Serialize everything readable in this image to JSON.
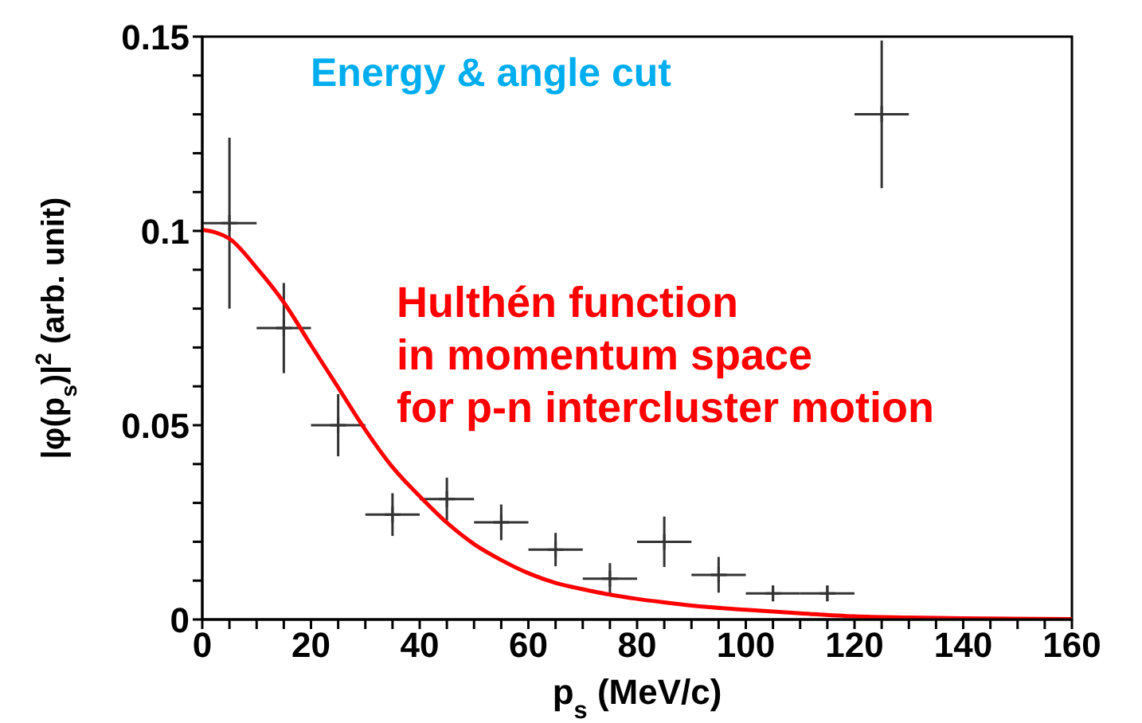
{
  "chart_data": {
    "type": "scatter",
    "xlabel": "p$_{s}$ (MeV/c)",
    "ylabel": "|φ(p$_{s}$)|$^{2}$ (arb. unit)",
    "annotations": [
      "Energy & angle cut"
    ],
    "xlim": [
      0,
      160
    ],
    "ylim": [
      0,
      0.15
    ],
    "xticks": [
      0,
      {
        "value": 5,
        "label": null
      },
      {
        "value": 10,
        "label": null
      },
      {
        "value": 15,
        "label": null
      },
      20,
      {
        "value": 25,
        "label": null
      },
      {
        "value": 30,
        "label": null
      },
      {
        "value": 35,
        "label": null
      },
      40,
      {
        "value": 45,
        "label": null
      },
      {
        "value": 50,
        "label": null
      },
      {
        "value": 55,
        "label": null
      },
      60,
      {
        "value": 65,
        "label": null
      },
      {
        "value": 70,
        "label": null
      },
      {
        "value": 75,
        "label": null
      },
      80,
      {
        "value": 85,
        "label": null
      },
      {
        "value": 90,
        "label": null
      },
      {
        "value": 95,
        "label": null
      },
      100,
      {
        "value": 105,
        "label": null
      },
      {
        "value": 110,
        "label": null
      },
      {
        "value": 115,
        "label": null
      },
      120,
      {
        "value": 125,
        "label": null
      },
      {
        "value": 130,
        "label": null
      },
      {
        "value": 135,
        "label": null
      },
      140,
      {
        "value": 145,
        "label": null
      },
      {
        "value": 150,
        "label": null
      },
      {
        "value": 155,
        "label": null
      },
      160
    ],
    "yticks": [
      0,
      {
        "value": 0.01,
        "label": null
      },
      {
        "value": 0.02,
        "label": null
      },
      {
        "value": 0.03,
        "label": null
      },
      {
        "value": 0.04,
        "label": null
      },
      0.05,
      {
        "value": 0.06,
        "label": null
      },
      {
        "value": 0.07,
        "label": null
      },
      {
        "value": 0.08,
        "label": null
      },
      {
        "value": 0.09,
        "label": null
      },
      0.1,
      {
        "value": 0.11,
        "label": null
      },
      {
        "value": 0.12,
        "label": null
      },
      {
        "value": 0.13,
        "label": null
      },
      {
        "value": 0.14,
        "label": null
      },
      0.15
    ],
    "grid": false,
    "legend": false,
    "series": [
      {
        "color": "#333333",
        "marker": "cross",
        "x": [
          5,
          15,
          25,
          35,
          45,
          55,
          65,
          75,
          85,
          95,
          105,
          115,
          125
        ],
        "values": [
          0.102,
          0.075,
          0.05,
          0.027,
          0.031,
          0.025,
          0.018,
          0.0105,
          0.02,
          0.0115,
          0.0067,
          0.0067,
          0.13
        ],
        "errors": [
          0.022,
          0.0116,
          0.008,
          0.0055,
          0.0055,
          0.0046,
          0.0043,
          0.004,
          0.0065,
          0.0046,
          0.002,
          0.002,
          0.019
        ],
        "xerrors": [
          5,
          5,
          5,
          5,
          5,
          5,
          5,
          5,
          5,
          5,
          5,
          5,
          5
        ]
      },
      {
        "type": "line",
        "name": "Hulthén function\nin momentum space\nfor p-n intercluster motion",
        "color": "#ff0000",
        "marker": "none",
        "line_style": "solid",
        "x": [
          0,
          5,
          10,
          15,
          20,
          25,
          30,
          35,
          40,
          45,
          50,
          55,
          60,
          65,
          70,
          75,
          80,
          85,
          90,
          100,
          110,
          120,
          130,
          140,
          160
        ],
        "values": [
          0.1003,
          0.098,
          0.0905,
          0.0816,
          0.0706,
          0.0597,
          0.0488,
          0.0392,
          0.0317,
          0.0249,
          0.0194,
          0.0153,
          0.0119,
          0.0094,
          0.0078,
          0.0064,
          0.0053,
          0.0044,
          0.0036,
          0.0025,
          0.0016,
          0.0008,
          0.0005,
          0.0003,
          0.0001
        ]
      }
    ]
  }
}
